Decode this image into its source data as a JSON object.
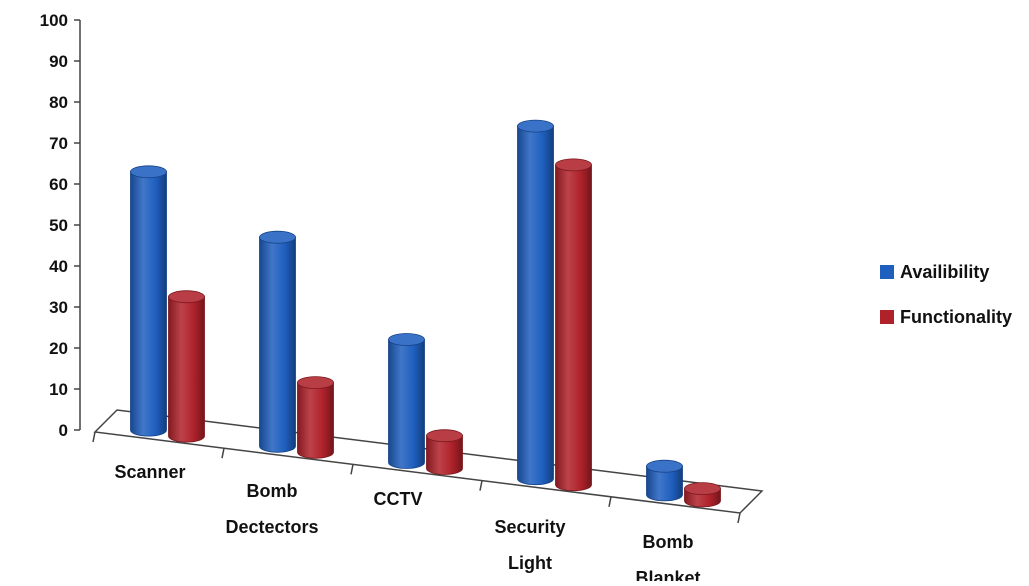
{
  "chart_data": {
    "type": "bar",
    "style": "3d-cylinder",
    "categories": [
      [
        "Scanner"
      ],
      [
        "Bomb",
        "Dectectors"
      ],
      [
        "CCTV"
      ],
      [
        "Security",
        "Light"
      ],
      [
        "Bomb",
        "Blanket"
      ]
    ],
    "series": [
      {
        "name": "Availibility",
        "color": "#1f5fbf",
        "values": [
          63,
          51,
          30,
          86,
          7
        ]
      },
      {
        "name": "Functionality",
        "color": "#b0222a",
        "values": [
          34,
          17,
          8,
          78,
          3
        ]
      }
    ],
    "ylim": [
      0,
      100
    ],
    "yticks": [
      "0",
      "10",
      "20",
      "30",
      "40",
      "50",
      "60",
      "70",
      "80",
      "90",
      "100"
    ],
    "legend_position": "right",
    "grid": false
  }
}
